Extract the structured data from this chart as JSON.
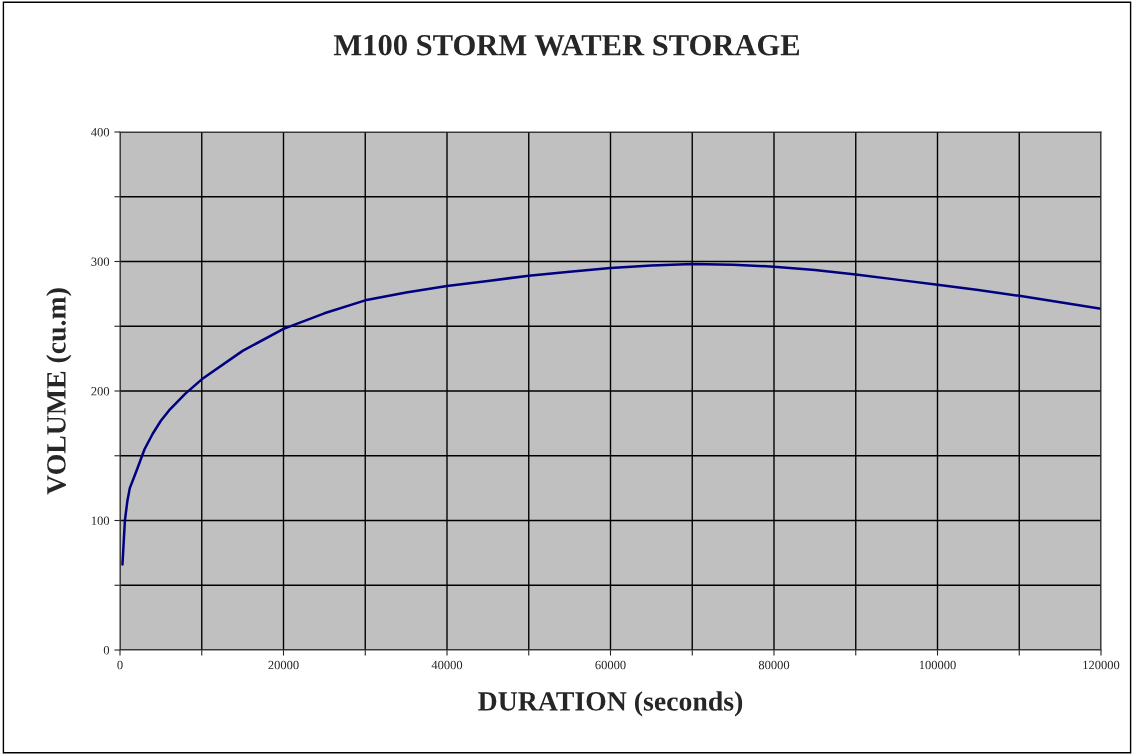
{
  "chart_data": {
    "type": "line",
    "title": "M100 STORM WATER STORAGE",
    "xlabel": "DURATION (seconds)",
    "ylabel": "VOLUME (cu.m)",
    "x": [
      300,
      600,
      900,
      1200,
      2000,
      3000,
      4000,
      5000,
      6000,
      8000,
      10000,
      15000,
      20000,
      25000,
      30000,
      35000,
      40000,
      45000,
      50000,
      55000,
      60000,
      65000,
      70000,
      75000,
      80000,
      85000,
      90000,
      95000,
      100000,
      105000,
      110000,
      115000,
      120000
    ],
    "series": [
      {
        "color": "#000080",
        "values": [
          66,
          100,
          115,
          125,
          138,
          155,
          167,
          177,
          185,
          198,
          209,
          231,
          248,
          260,
          270,
          276,
          281,
          285,
          289,
          292,
          295,
          297,
          298,
          297.5,
          296,
          293.5,
          290,
          286,
          282,
          278,
          273.5,
          268.5,
          263.5
        ]
      }
    ],
    "xlim": [
      0,
      120000
    ],
    "ylim": [
      0,
      400
    ],
    "xticks": [
      0,
      {
        "value": 10000,
        "label": null
      },
      20000,
      {
        "value": 30000,
        "label": null
      },
      40000,
      {
        "value": 50000,
        "label": null
      },
      60000,
      {
        "value": 70000,
        "label": null
      },
      80000,
      {
        "value": 90000,
        "label": null
      },
      100000,
      {
        "value": 110000,
        "label": null
      },
      120000
    ],
    "yticks": [
      0,
      {
        "value": 50,
        "label": null
      },
      100,
      {
        "value": 150,
        "label": null
      },
      200,
      {
        "value": 250,
        "label": null
      },
      300,
      {
        "value": 350,
        "label": null
      },
      400
    ],
    "grid": true,
    "legend": false,
    "marker": "none",
    "line_style": "solid"
  }
}
